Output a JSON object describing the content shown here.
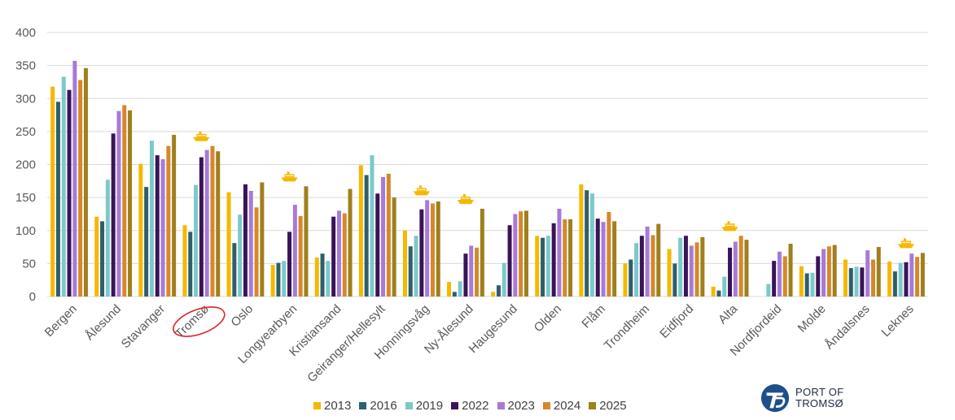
{
  "chart_data": {
    "type": "bar",
    "ylim": [
      0,
      400
    ],
    "yticks": [
      0,
      50,
      100,
      150,
      200,
      250,
      300,
      350,
      400
    ],
    "grid": true,
    "legend_position": "bottom",
    "categories": [
      "Bergen",
      "Ålesund",
      "Stavanger",
      "Tromsø",
      "Oslo",
      "Longyearbyen",
      "Kristiansand",
      "Geiranger/Hellesylt",
      "Honningsvåg",
      "Ny-Ålesund",
      "Haugesund",
      "Olden",
      "Flåm",
      "Trondheim",
      "Eidfjord",
      "Alta",
      "Nordfjordeid",
      "Molde",
      "Åndalsnes",
      "Leknes"
    ],
    "series": [
      {
        "name": "2013",
        "color": "#f5b800",
        "values": [
          318,
          121,
          201,
          108,
          158,
          48,
          59,
          199,
          100,
          22,
          7,
          92,
          170,
          50,
          72,
          15,
          0,
          46,
          56,
          53
        ]
      },
      {
        "name": "2016",
        "color": "#2e5f6b",
        "values": [
          295,
          114,
          166,
          98,
          81,
          51,
          65,
          184,
          76,
          7,
          17,
          89,
          161,
          56,
          50,
          9,
          0,
          35,
          43,
          38
        ]
      },
      {
        "name": "2019",
        "color": "#7cc9c9",
        "values": [
          333,
          177,
          236,
          169,
          124,
          54,
          54,
          214,
          92,
          23,
          51,
          92,
          156,
          81,
          89,
          30,
          19,
          36,
          45,
          51
        ]
      },
      {
        "name": "2022",
        "color": "#3a1458",
        "values": [
          313,
          247,
          214,
          211,
          170,
          98,
          121,
          156,
          132,
          65,
          108,
          111,
          118,
          92,
          92,
          74,
          54,
          61,
          44,
          52
        ]
      },
      {
        "name": "2023",
        "color": "#a77ad8",
        "values": [
          357,
          281,
          208,
          222,
          160,
          139,
          130,
          181,
          146,
          77,
          125,
          133,
          113,
          106,
          77,
          83,
          68,
          72,
          70,
          65
        ]
      },
      {
        "name": "2024",
        "color": "#d4882a",
        "values": [
          328,
          290,
          228,
          228,
          135,
          122,
          126,
          186,
          141,
          74,
          129,
          117,
          128,
          93,
          82,
          92,
          61,
          76,
          56,
          60
        ]
      },
      {
        "name": "2025",
        "color": "#a07f1c",
        "values": [
          346,
          282,
          245,
          220,
          173,
          167,
          163,
          150,
          144,
          133,
          130,
          117,
          114,
          110,
          90,
          86,
          80,
          78,
          75,
          66
        ]
      }
    ],
    "ship_icons_at": [
      "Tromsø",
      "Longyearbyen",
      "Honningsvåg",
      "Ny-Ålesund",
      "Alta",
      "Leknes"
    ],
    "highlighted_category": "Tromsø"
  },
  "logo": {
    "line1": "PORT OF",
    "line2": "TROMSØ"
  },
  "colors": {
    "grid": "#d9d9d9",
    "highlight_circle": "#e0202a",
    "ship_icon": "#f5b800"
  }
}
